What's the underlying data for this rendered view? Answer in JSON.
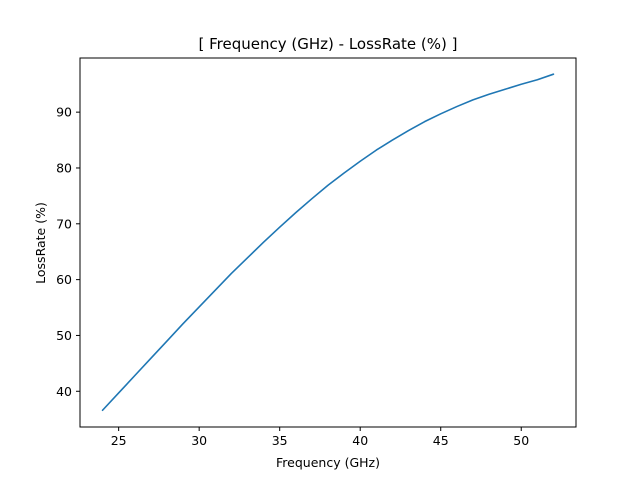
{
  "chart_data": {
    "type": "line",
    "title": "[ Frequency (GHz) - LossRate (%) ]",
    "xlabel": "Frequency (GHz)",
    "ylabel": "LossRate (%)",
    "xlim": [
      22.6,
      53.4
    ],
    "ylim": [
      33.6,
      99.7
    ],
    "xticks": [
      25,
      30,
      35,
      40,
      45,
      50
    ],
    "yticks": [
      40,
      50,
      60,
      70,
      80,
      90
    ],
    "grid": false,
    "legend": "none",
    "series": [
      {
        "color": "#1f77b4",
        "x": [
          24,
          25,
          26,
          27,
          28,
          29,
          30,
          31,
          32,
          33,
          34,
          35,
          36,
          37,
          38,
          39,
          40,
          41,
          42,
          43,
          44,
          45,
          46,
          47,
          48,
          49,
          50,
          51,
          52
        ],
        "y": [
          36.6,
          39.7,
          42.8,
          45.9,
          49.0,
          52.1,
          55.1,
          58.1,
          61.1,
          63.9,
          66.7,
          69.4,
          72.0,
          74.5,
          76.9,
          79.1,
          81.2,
          83.2,
          85.0,
          86.7,
          88.3,
          89.7,
          91.0,
          92.2,
          93.2,
          94.1,
          95.0,
          95.8,
          96.8
        ]
      }
    ]
  }
}
